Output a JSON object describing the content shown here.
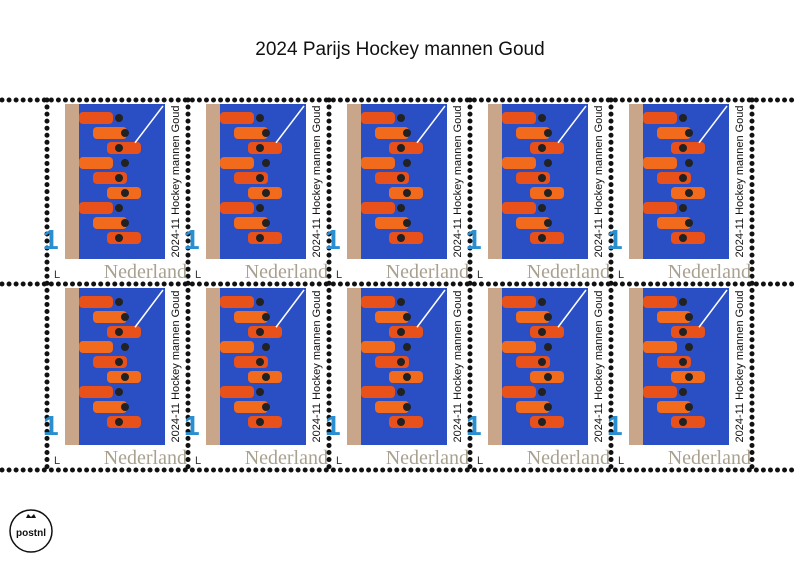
{
  "header": {
    "title": "2024 Parijs Hockey mannen Goud"
  },
  "stamps": [
    {
      "value": "1",
      "caption": "2024-11 Hockey mannen Goud",
      "country": "Nederland",
      "mark": "L"
    },
    {
      "value": "1",
      "caption": "2024-11 Hockey mannen Goud",
      "country": "Nederland",
      "mark": "L"
    },
    {
      "value": "1",
      "caption": "2024-11 Hockey mannen Goud",
      "country": "Nederland",
      "mark": "L"
    },
    {
      "value": "1",
      "caption": "2024-11 Hockey mannen Goud",
      "country": "Nederland",
      "mark": "L"
    },
    {
      "value": "1",
      "caption": "2024-11 Hockey mannen Goud",
      "country": "Nederland",
      "mark": "L"
    },
    {
      "value": "1",
      "caption": "2024-11 Hockey mannen Goud",
      "country": "Nederland",
      "mark": "L"
    },
    {
      "value": "1",
      "caption": "2024-11 Hockey mannen Goud",
      "country": "Nederland",
      "mark": "L"
    },
    {
      "value": "1",
      "caption": "2024-11 Hockey mannen Goud",
      "country": "Nederland",
      "mark": "L"
    },
    {
      "value": "1",
      "caption": "2024-11 Hockey mannen Goud",
      "country": "Nederland",
      "mark": "L"
    },
    {
      "value": "1",
      "caption": "2024-11 Hockey mannen Goud",
      "country": "Nederland",
      "mark": "L"
    }
  ],
  "logo": {
    "text": "postnl"
  }
}
